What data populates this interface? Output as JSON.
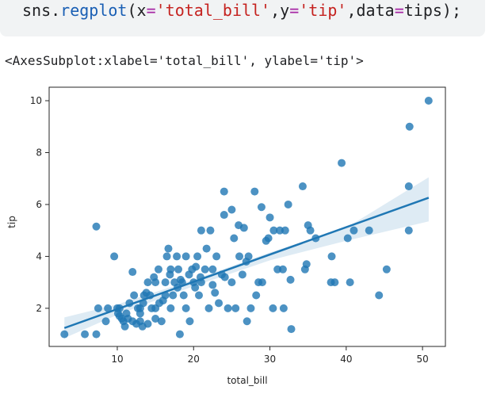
{
  "code": [
    {
      "text": "sns.",
      "color": "#202124"
    },
    {
      "text": "regplot",
      "color": "#1a5fb4"
    },
    {
      "text": "(x",
      "color": "#202124"
    },
    {
      "text": "=",
      "color": "#a626a4"
    },
    {
      "text": "'total_bill'",
      "color": "#c5221f"
    },
    {
      "text": ",y",
      "color": "#202124"
    },
    {
      "text": "=",
      "color": "#a626a4"
    },
    {
      "text": "'tip'",
      "color": "#c5221f"
    },
    {
      "text": ",data",
      "color": "#202124"
    },
    {
      "text": "=",
      "color": "#a626a4"
    },
    {
      "text": "tips);",
      "color": "#202124"
    }
  ],
  "output_text": "<AxesSubplot:xlabel='total_bill', ylabel='tip'>",
  "chart_data": {
    "type": "scatter",
    "x_label": "total_bill",
    "y_label": "tip",
    "color": "#1f77b4",
    "x": [
      3.07,
      5.75,
      7.25,
      7.25,
      7.5,
      8.5,
      8.77,
      9.6,
      10.1,
      10.3,
      10.6,
      10,
      10.3,
      10.8,
      11,
      11.2,
      11.6,
      12,
      12.2,
      12.5,
      12.7,
      13,
      13,
      13.4,
      13.5,
      13.8,
      14,
      14.3,
      14.5,
      14.8,
      15,
      15,
      15.4,
      15.5,
      15.8,
      16,
      16.3,
      16.5,
      16.7,
      17,
      17,
      17.3,
      17.5,
      17.8,
      18,
      18.2,
      18.5,
      18.7,
      19,
      19.4,
      19.5,
      20,
      20.3,
      20.5,
      20.7,
      21,
      21,
      21.5,
      22,
      22.2,
      22.5,
      22.8,
      23,
      23.3,
      23.7,
      24,
      24,
      24.5,
      25,
      25,
      25.3,
      25.5,
      25.9,
      26,
      26.4,
      26.9,
      27,
      27.2,
      27.5,
      28,
      28.2,
      28.5,
      28.9,
      29,
      29.8,
      30,
      30.4,
      30.5,
      31,
      31.3,
      31.7,
      32,
      32.4,
      32.7,
      32.8,
      34.3,
      34.6,
      34.8,
      35,
      35.3,
      36,
      38,
      38.1,
      38.5,
      39.4,
      40.2,
      40.5,
      41,
      43,
      44.3,
      45.3,
      48.2,
      48.2,
      48.3,
      50.8,
      16.3,
      13,
      11.4,
      12,
      13.3,
      21.7,
      20.9,
      19.8,
      18.3,
      22.5,
      24.1,
      26.6,
      29.5,
      31.8,
      15,
      14,
      17.9,
      19,
      20.2,
      16.9
    ],
    "values": [
      1,
      1,
      1,
      5.15,
      2,
      1.5,
      2,
      4,
      1.8,
      1.7,
      1.6,
      2,
      2,
      1.5,
      1.3,
      1.8,
      2.2,
      1.5,
      2.5,
      1.4,
      2,
      2,
      1.5,
      2.2,
      2.5,
      2.6,
      3,
      2.5,
      2,
      3.2,
      2,
      3,
      3.5,
      2.2,
      1.5,
      2.3,
      3,
      4,
      4.3,
      3.5,
      2,
      2.5,
      3,
      4,
      3.5,
      1,
      3,
      2.5,
      4,
      3.3,
      1.5,
      3,
      3.6,
      4,
      2.5,
      3,
      5,
      3.5,
      2,
      5,
      3.5,
      2.6,
      4,
      2.2,
      3.3,
      6.5,
      5.6,
      2,
      5.8,
      3,
      4.7,
      2,
      5.2,
      4,
      3.3,
      3.8,
      1.5,
      4,
      2,
      6.5,
      2.5,
      3,
      5.9,
      3,
      4.7,
      5.5,
      2,
      5,
      3.5,
      5,
      3.5,
      5,
      6,
      3.1,
      1.2,
      6.7,
      3.5,
      3.7,
      5.2,
      5,
      4.7,
      3,
      4,
      3,
      7.6,
      4.7,
      3,
      5,
      5,
      2.5,
      3.5,
      5,
      6.7,
      9,
      10,
      2.5,
      1.8,
      1.6,
      3.4,
      1.3,
      4.3,
      3.2,
      3.5,
      3.1,
      2.9,
      3.2,
      5.1,
      4.6,
      2,
      1.6,
      1.4,
      2.8,
      2,
      2.8,
      3.3
    ],
    "fit": {
      "x": [
        3.07,
        50.81
      ],
      "values": [
        1.24,
        6.26
      ]
    },
    "band": {
      "x": [
        3.07,
        10,
        20,
        30,
        40,
        50.81
      ],
      "lower": [
        0.85,
        1.75,
        2.85,
        3.85,
        4.6,
        5.35
      ],
      "upper": [
        1.65,
        2.15,
        3.1,
        4.15,
        5.1,
        7.05
      ]
    },
    "xlim": [
      1.07,
      53.0
    ],
    "ylim": [
      0.53,
      10.52
    ],
    "xticks": [
      10,
      20,
      30,
      40,
      50
    ],
    "yticks": [
      2,
      4,
      6,
      8,
      10
    ]
  }
}
